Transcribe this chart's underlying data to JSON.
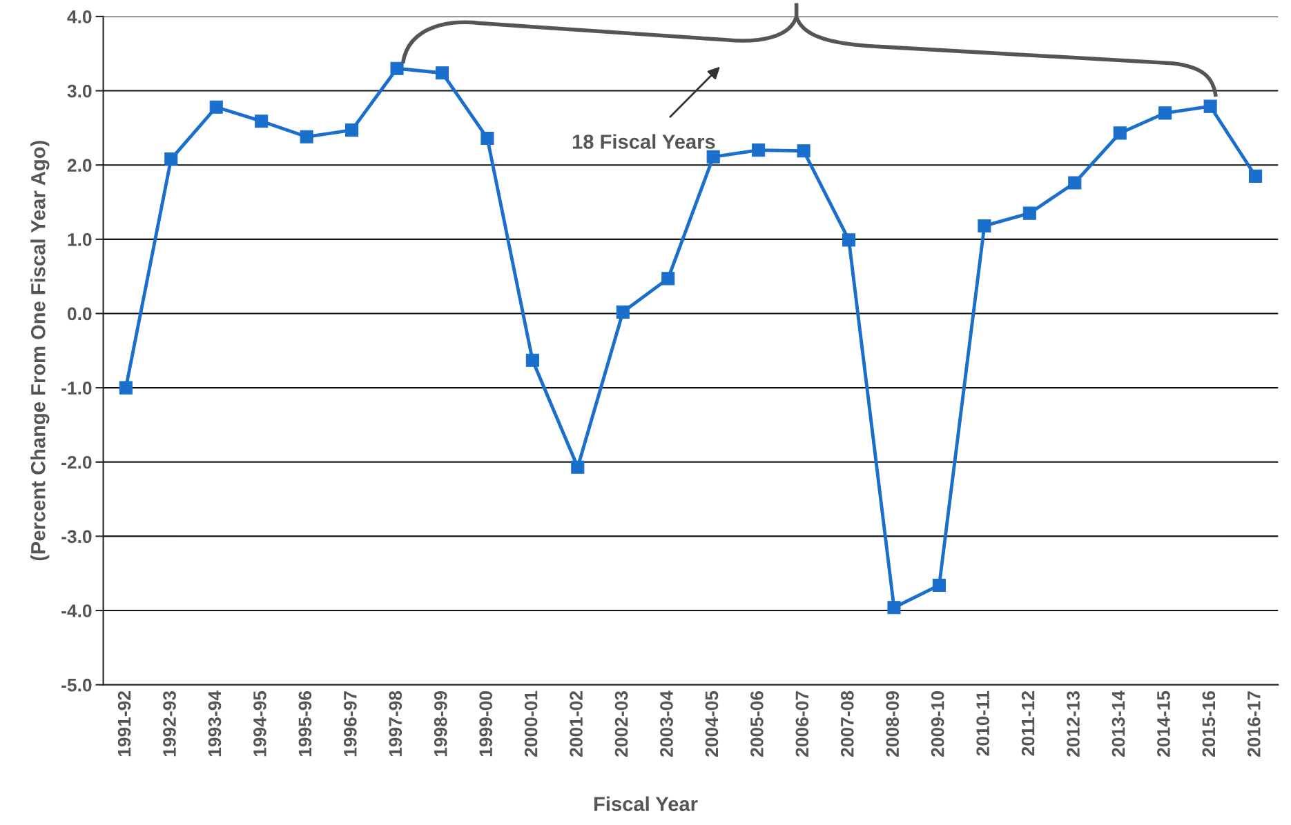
{
  "chart_data": {
    "type": "line",
    "xlabel": "Fiscal Year",
    "ylabel": "(Percent Change From One Fiscal Year Ago)",
    "categories": [
      "1991-92",
      "1992-93",
      "1993-94",
      "1994-95",
      "1995-96",
      "1996-97",
      "1997-98",
      "1998-99",
      "1999-00",
      "2000-01",
      "2001-02",
      "2002-03",
      "2003-04",
      "2004-05",
      "2005-06",
      "2006-07",
      "2007-08",
      "2008-09",
      "2009-10",
      "2010-11",
      "2011-12",
      "2012-13",
      "2013-14",
      "2014-15",
      "2015-16",
      "2016-17"
    ],
    "series": [
      {
        "color": "#1a6fcc",
        "values": [
          -1.0,
          2.08,
          2.78,
          2.59,
          2.38,
          2.47,
          3.3,
          3.24,
          2.36,
          -0.63,
          -2.07,
          0.02,
          0.47,
          2.11,
          2.2,
          2.19,
          0.99,
          -3.96,
          -3.66,
          1.18,
          1.35,
          1.76,
          2.43,
          2.7,
          2.79,
          1.85
        ]
      }
    ],
    "ylim": [
      -5,
      4
    ],
    "yticks": [
      {
        "value": -5,
        "label": "-5.0"
      },
      {
        "value": -4,
        "label": "-4.0"
      },
      {
        "value": -3,
        "label": "-3.0"
      },
      {
        "value": -2,
        "label": "-2.0"
      },
      {
        "value": -1,
        "label": "-1.0"
      },
      {
        "value": 0,
        "label": "0.0"
      },
      {
        "value": 1,
        "label": "1.0"
      },
      {
        "value": 2,
        "label": "2.0"
      },
      {
        "value": 3,
        "label": "3.0"
      },
      {
        "value": 4,
        "label": "4.0"
      }
    ],
    "grid": "y",
    "marker": "square",
    "line_style": "solid",
    "annotations": [
      "18 Fiscal Years"
    ]
  }
}
